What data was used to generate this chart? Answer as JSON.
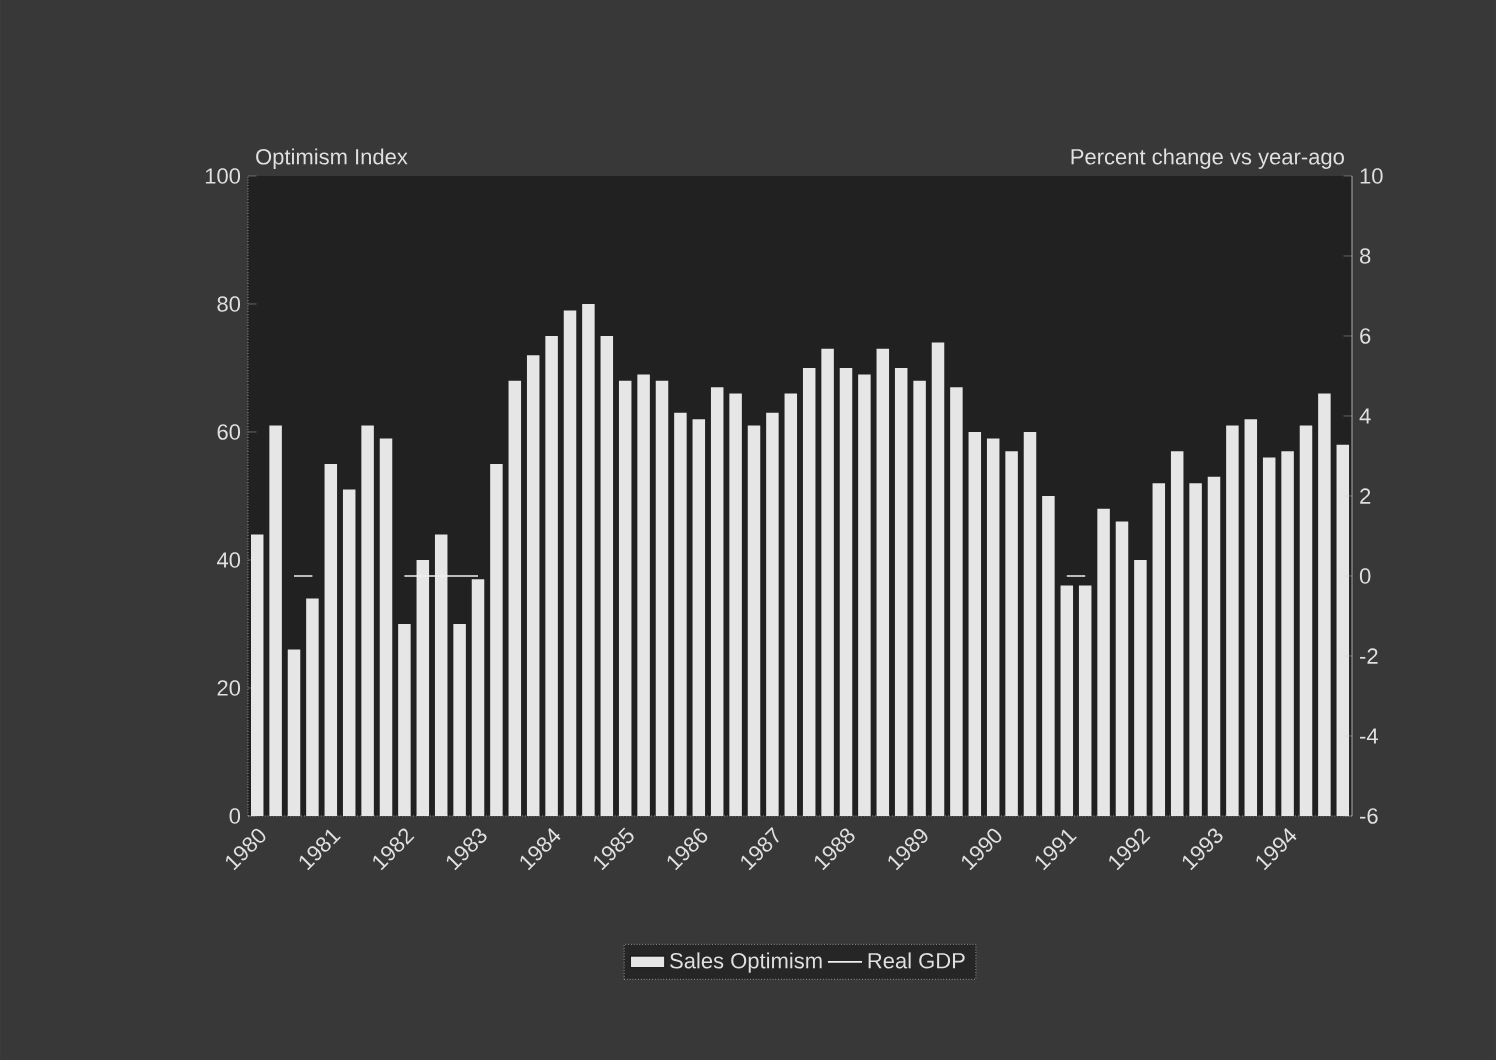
{
  "chart_data": {
    "type": "bar",
    "ylabel": "Optimism Index",
    "y2label": "Percent change vs  year-ago",
    "categories": [
      "1980",
      null,
      null,
      null,
      "1981",
      null,
      null,
      null,
      "1982",
      null,
      null,
      null,
      "1983",
      null,
      null,
      null,
      "1984",
      null,
      null,
      null,
      "1985",
      null,
      null,
      null,
      "1986",
      null,
      null,
      null,
      "1987",
      null,
      null,
      null,
      "1988",
      null,
      null,
      null,
      "1989",
      null,
      null,
      null,
      "1990",
      null,
      null,
      null,
      "1991",
      null,
      null,
      null,
      "1992",
      null,
      null,
      null,
      "1993",
      null,
      null,
      null,
      "1994",
      null,
      null,
      null
    ],
    "series": [
      {
        "name": "Sales Optimism",
        "color": "#e6e6e6",
        "values": [
          44,
          61,
          26,
          34,
          55,
          51,
          61,
          59,
          30,
          40,
          44,
          30,
          37,
          55,
          68,
          72,
          75,
          79,
          80,
          75,
          68,
          69,
          68,
          63,
          62,
          67,
          66,
          61,
          63,
          66,
          70,
          73,
          70,
          69,
          73,
          70,
          68,
          74,
          67,
          60,
          59,
          57,
          60,
          50,
          36,
          36,
          48,
          46,
          40,
          52,
          57,
          52,
          53,
          61,
          62,
          56,
          57,
          61,
          66,
          58
        ]
      },
      {
        "name": "Real GDP",
        "type": "line",
        "axis": "y2",
        "color": "#f0f0f0",
        "values": [
          null,
          null,
          0,
          0,
          null,
          null,
          null,
          null,
          0,
          0,
          0,
          0,
          0,
          null,
          null,
          null,
          null,
          null,
          null,
          null,
          null,
          null,
          null,
          null,
          null,
          null,
          null,
          null,
          null,
          null,
          null,
          null,
          null,
          null,
          null,
          null,
          null,
          null,
          null,
          null,
          null,
          null,
          null,
          null,
          0,
          0,
          null,
          null,
          null,
          null,
          null,
          null,
          null,
          null,
          null,
          null,
          null,
          null,
          null,
          null
        ]
      }
    ],
    "ylim": [
      0,
      100
    ],
    "yticks": [
      0,
      20,
      40,
      60,
      80,
      100
    ],
    "y2lim": [
      -6,
      10
    ],
    "y2ticks": [
      -6,
      -4,
      -2,
      0,
      2,
      4,
      6,
      8,
      10
    ],
    "legend": "bottom"
  }
}
